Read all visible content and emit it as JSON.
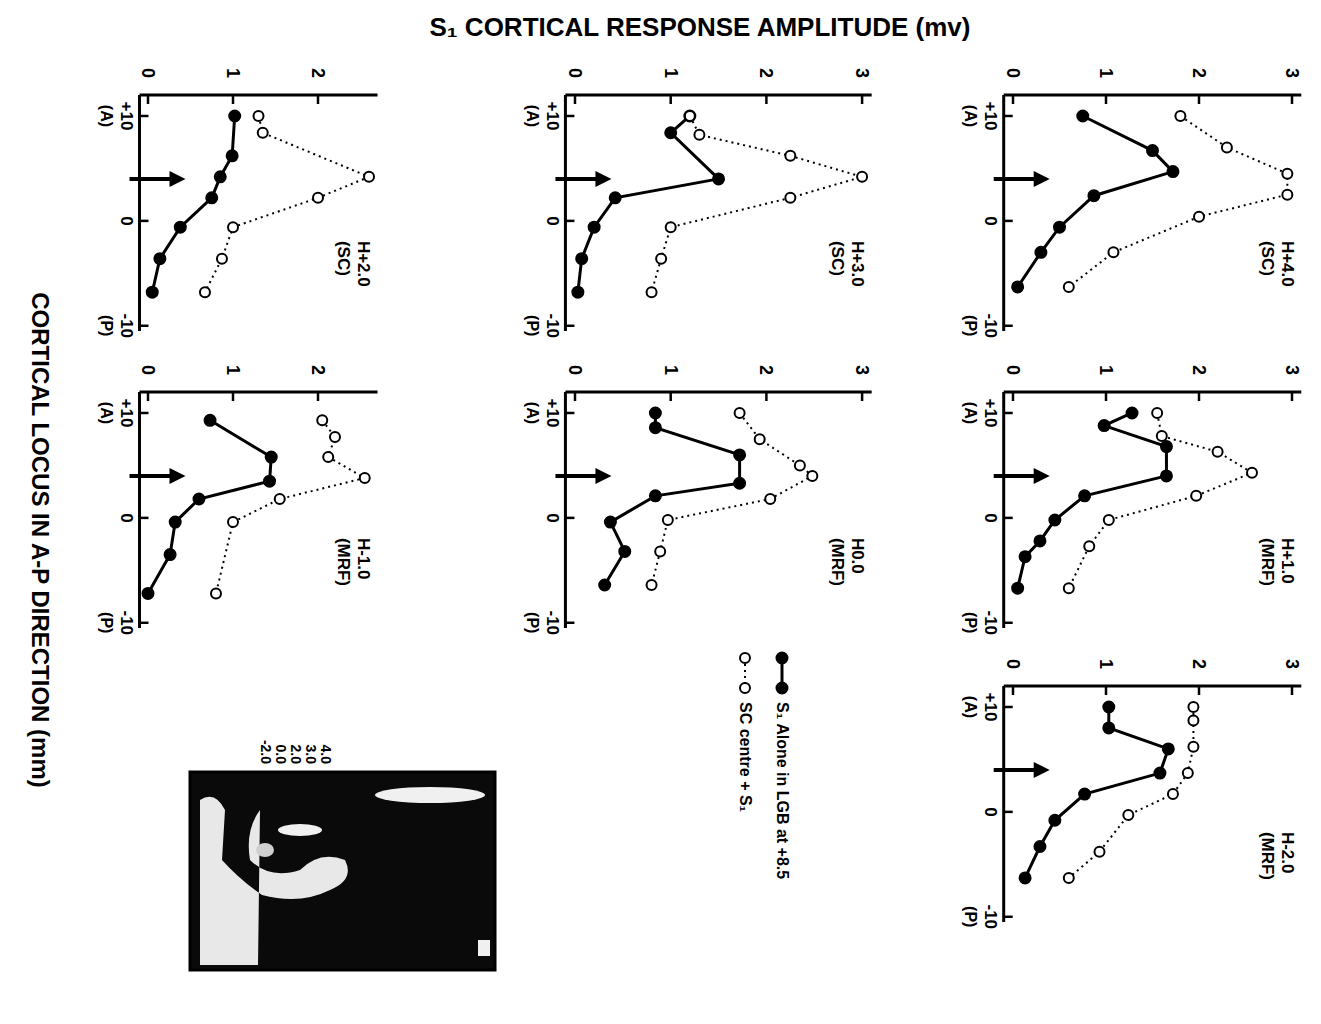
{
  "ylabel": "S₁ CORTICAL RESPONSE AMPLITUDE (mv)",
  "xlabel": "CORTICAL LOCUS IN A-P DIRECTION (mm)",
  "inset": {
    "labels": [
      "4.0",
      "3.0",
      "2.0",
      "0.0",
      "-2.0"
    ]
  },
  "chart_data": [
    {
      "type": "line",
      "orientation": "horizontal",
      "title": "H+4.0",
      "subtitle": "(SC)",
      "xlim": [
        -10.5,
        12
      ],
      "xticks": [
        {
          "value": 10,
          "label": "+10"
        },
        0,
        -10
      ],
      "ylim": [
        -0.1,
        3.1
      ],
      "yticks": [
        0,
        1,
        2,
        3
      ],
      "annotations": [
        {
          "text": "(A)",
          "x": 10
        },
        {
          "text": "(P)",
          "x": -10
        }
      ],
      "arrow": 4,
      "series": [
        {
          "name": "S₁ Alone in LGB at +8.5",
          "color": "#000000",
          "marker": "filled",
          "line_style": "solid",
          "x": [
            10,
            6.7,
            4.7,
            2.4,
            -0.6,
            -3,
            -6.3
          ],
          "values": [
            0.75,
            1.5,
            1.72,
            0.87,
            0.5,
            0.3,
            0.05
          ]
        },
        {
          "name": "SC centre + S₁",
          "color": "#000000",
          "marker": "open",
          "line_style": "dotted",
          "x": [
            10,
            7,
            4.5,
            2.5,
            0.4,
            -3,
            -6.3
          ],
          "values": [
            1.8,
            2.3,
            2.95,
            2.95,
            2.0,
            1.08,
            0.6
          ]
        }
      ]
    },
    {
      "type": "line",
      "orientation": "horizontal",
      "title": "H+3.0",
      "subtitle": "(SC)",
      "xlim": [
        -10.5,
        12
      ],
      "xticks": [
        {
          "value": 10,
          "label": "+10"
        },
        0,
        -10
      ],
      "ylim": [
        -0.1,
        3.1
      ],
      "yticks": [
        0,
        1,
        2,
        3
      ],
      "annotations": [
        {
          "text": "(A)",
          "x": 10
        },
        {
          "text": "(P)",
          "x": -10
        }
      ],
      "arrow": 4,
      "series": [
        {
          "color": "#000000",
          "marker": "filled",
          "line_style": "solid",
          "x": [
            10,
            8.4,
            4,
            2.2,
            -0.6,
            -3.6,
            -6.8
          ],
          "values": [
            1.2,
            1.0,
            1.5,
            0.42,
            0.2,
            0.07,
            0.03
          ]
        },
        {
          "color": "#000000",
          "marker": "open",
          "line_style": "dotted",
          "x": [
            10,
            8.2,
            6.2,
            4.2,
            2.2,
            -0.6,
            -3.6,
            -6.8
          ],
          "values": [
            1.2,
            1.3,
            2.25,
            3.0,
            2.25,
            1.0,
            0.9,
            0.8
          ]
        }
      ]
    },
    {
      "type": "line",
      "orientation": "horizontal",
      "title": "H+2.0",
      "subtitle": "(SC)",
      "xlim": [
        -10.5,
        12
      ],
      "xticks": [
        {
          "value": 10,
          "label": "+10"
        },
        0,
        -10
      ],
      "ylim": [
        -0.1,
        2.7
      ],
      "yticks": [
        0,
        1,
        2
      ],
      "annotations": [
        {
          "text": "(A)",
          "x": 10
        },
        {
          "text": "(P)",
          "x": -10
        }
      ],
      "arrow": 4,
      "series": [
        {
          "color": "#000000",
          "marker": "filled",
          "line_style": "solid",
          "x": [
            10,
            6.2,
            4.2,
            2.2,
            -0.6,
            -3.6,
            -6.8
          ],
          "values": [
            1.02,
            0.99,
            0.85,
            0.75,
            0.38,
            0.14,
            0.05
          ]
        },
        {
          "color": "#000000",
          "marker": "open",
          "line_style": "dotted",
          "x": [
            10,
            8.4,
            4.2,
            2.2,
            -0.6,
            -3.6,
            -6.8
          ],
          "values": [
            1.3,
            1.35,
            2.6,
            2.0,
            1.0,
            0.87,
            0.67
          ]
        }
      ]
    },
    {
      "type": "line",
      "orientation": "horizontal",
      "title": "H+1.0",
      "subtitle": "(MRF)",
      "xlim": [
        -10.5,
        12
      ],
      "xticks": [
        {
          "value": 10,
          "label": "+10"
        },
        0,
        -10
      ],
      "ylim": [
        -0.1,
        3.1
      ],
      "yticks": [
        0,
        1,
        2,
        3
      ],
      "annotations": [
        {
          "text": "(A)",
          "x": 10
        },
        {
          "text": "(P)",
          "x": -10
        }
      ],
      "arrow": 4,
      "series": [
        {
          "color": "#000000",
          "marker": "filled",
          "line_style": "solid",
          "x": [
            10,
            8.8,
            6.8,
            4,
            2.1,
            -0.2,
            -2.2,
            -3.7,
            -6.7
          ],
          "values": [
            1.28,
            0.98,
            1.65,
            1.65,
            0.77,
            0.45,
            0.29,
            0.13,
            0.05
          ]
        },
        {
          "color": "#000000",
          "marker": "open",
          "line_style": "dotted",
          "x": [
            10,
            7.8,
            6.3,
            4.3,
            2.1,
            -0.2,
            -2.7,
            -6.7
          ],
          "values": [
            1.55,
            1.6,
            2.2,
            2.57,
            1.97,
            1.03,
            0.82,
            0.6
          ]
        }
      ]
    },
    {
      "type": "line",
      "orientation": "horizontal",
      "title": "H0.0",
      "subtitle": "(MRF)",
      "xlim": [
        -10.5,
        12
      ],
      "xticks": [
        {
          "value": 10,
          "label": "+10"
        },
        0,
        -10
      ],
      "ylim": [
        -0.1,
        3.1
      ],
      "yticks": [
        0,
        1,
        2,
        3
      ],
      "annotations": [
        {
          "text": "(A)",
          "x": 10
        },
        {
          "text": "(P)",
          "x": -10
        }
      ],
      "arrow": 4,
      "series": [
        {
          "color": "#000000",
          "marker": "filled",
          "line_style": "solid",
          "x": [
            10,
            8.6,
            6,
            3.3,
            2.1,
            -0.4,
            -3.2,
            -6.4
          ],
          "values": [
            0.84,
            0.84,
            1.72,
            1.72,
            0.84,
            0.37,
            0.52,
            0.31
          ]
        },
        {
          "color": "#000000",
          "marker": "open",
          "line_style": "dotted",
          "x": [
            10,
            7.5,
            5,
            4,
            1.8,
            -0.2,
            -3.2,
            -6.4
          ],
          "values": [
            1.72,
            1.93,
            2.35,
            2.48,
            2.04,
            0.97,
            0.89,
            0.8
          ]
        }
      ]
    },
    {
      "type": "line",
      "orientation": "horizontal",
      "title": "H-1.0",
      "subtitle": "(MRF)",
      "xlim": [
        -10.5,
        12
      ],
      "xticks": [
        {
          "value": 10,
          "label": "+10"
        },
        0,
        -10
      ],
      "ylim": [
        -0.1,
        2.7
      ],
      "yticks": [
        0,
        1,
        2
      ],
      "annotations": [
        {
          "text": "(A)",
          "x": 10
        },
        {
          "text": "(P)",
          "x": -10
        }
      ],
      "arrow": 4,
      "series": [
        {
          "color": "#000000",
          "marker": "filled",
          "line_style": "solid",
          "x": [
            9.3,
            5.8,
            3.5,
            1.8,
            -0.4,
            -3.5,
            -7.2
          ],
          "values": [
            0.73,
            1.45,
            1.43,
            0.6,
            0.32,
            0.26,
            0.0
          ]
        },
        {
          "color": "#000000",
          "marker": "open",
          "line_style": "dotted",
          "x": [
            9.3,
            7.7,
            5.8,
            3.8,
            1.8,
            -0.4,
            -7.2
          ],
          "values": [
            2.05,
            2.2,
            2.12,
            2.55,
            1.55,
            1.0,
            0.8
          ]
        }
      ]
    },
    {
      "type": "line",
      "orientation": "horizontal",
      "title": "H-2.0",
      "subtitle": "(MRF)",
      "xlim": [
        -10.5,
        12
      ],
      "xticks": [
        {
          "value": 10,
          "label": "+10"
        },
        0,
        -10
      ],
      "ylim": [
        -0.1,
        3.1
      ],
      "yticks": [
        0,
        1,
        2,
        3
      ],
      "annotations": [
        {
          "text": "(A)",
          "x": 10
        },
        {
          "text": "(P)",
          "x": -10
        }
      ],
      "arrow": 4,
      "series": [
        {
          "color": "#000000",
          "marker": "filled",
          "line_style": "solid",
          "x": [
            10,
            8,
            6,
            3.7,
            1.7,
            -0.8,
            -3.3,
            -6.3
          ],
          "values": [
            1.03,
            1.03,
            1.67,
            1.58,
            0.77,
            0.45,
            0.29,
            0.13
          ]
        },
        {
          "color": "#000000",
          "marker": "open",
          "line_style": "dotted",
          "x": [
            10,
            8.7,
            6.2,
            3.7,
            1.7,
            -0.3,
            -3.8,
            -6.3
          ],
          "values": [
            1.94,
            1.94,
            1.94,
            1.88,
            1.72,
            1.24,
            0.93,
            0.6
          ]
        }
      ]
    }
  ]
}
